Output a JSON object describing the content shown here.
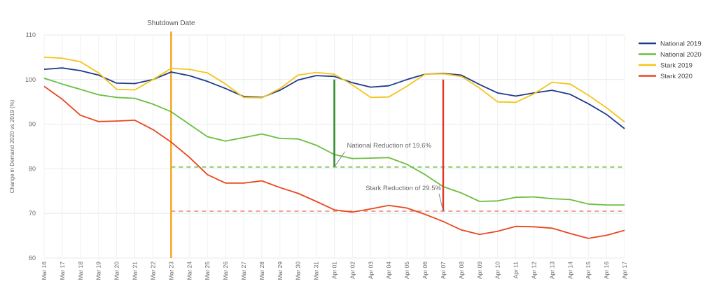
{
  "chart_data": {
    "type": "line",
    "title": "",
    "xlabel": "",
    "ylabel": "Change in Demand 2020 vs 2019 (%)",
    "ylim": [
      60,
      110
    ],
    "yticks": [
      60,
      70,
      80,
      90,
      100,
      110
    ],
    "grid": true,
    "legend_position": "right",
    "x": [
      "Mar 16",
      "Mar 17",
      "Mar 18",
      "Mar 19",
      "Mar 20",
      "Mar 21",
      "Mar 22",
      "Mar 23",
      "Mar 24",
      "Mar 25",
      "Mar 26",
      "Mar 27",
      "Mar 28",
      "Mar 29",
      "Mar 30",
      "Mar 31",
      "Apr 01",
      "Apr 02",
      "Apr 03",
      "Apr 04",
      "Apr 05",
      "Apr 06",
      "Apr 07",
      "Apr 08",
      "Apr 09",
      "Apr 10",
      "Apr 11",
      "Apr 12",
      "Apr 13",
      "Apr 14",
      "Apr 15",
      "Apr 16",
      "Apr 17"
    ],
    "series": [
      {
        "name": "National 2019",
        "color": "#1f3a8a",
        "values": [
          102.3,
          102.6,
          102.0,
          101.0,
          99.2,
          99.1,
          100.0,
          101.7,
          100.9,
          99.6,
          98.0,
          96.2,
          96.0,
          97.6,
          99.9,
          100.9,
          100.7,
          99.3,
          98.3,
          98.6,
          100.0,
          101.2,
          101.4,
          101.0,
          98.9,
          97.0,
          96.3,
          97.0,
          97.6,
          96.7,
          94.6,
          92.2,
          89.0
        ]
      },
      {
        "name": "National 2020",
        "color": "#6abf3f",
        "values": [
          100.3,
          99.0,
          97.8,
          96.6,
          96.0,
          95.8,
          94.5,
          92.8,
          90.0,
          87.2,
          86.2,
          87.0,
          87.8,
          86.8,
          86.7,
          85.3,
          83.2,
          82.3,
          82.4,
          82.5,
          81.0,
          78.7,
          76.0,
          74.6,
          72.7,
          72.8,
          73.6,
          73.7,
          73.3,
          73.1,
          72.1,
          71.9,
          71.9
        ]
      },
      {
        "name": "Stark 2019",
        "color": "#f5c518",
        "values": [
          105.0,
          104.8,
          104.0,
          101.5,
          97.8,
          97.7,
          100.0,
          102.5,
          102.3,
          101.5,
          99.0,
          96.0,
          95.9,
          98.0,
          101.0,
          101.6,
          101.2,
          98.8,
          96.0,
          96.1,
          98.5,
          101.2,
          101.3,
          100.7,
          98.1,
          95.0,
          94.9,
          96.8,
          99.4,
          99.0,
          96.5,
          93.7,
          90.5
        ]
      },
      {
        "name": "Stark 2020",
        "color": "#e8481c",
        "values": [
          98.5,
          95.6,
          92.0,
          90.6,
          90.7,
          90.9,
          88.8,
          86.0,
          82.6,
          78.7,
          76.8,
          76.8,
          77.3,
          75.8,
          74.5,
          72.7,
          70.8,
          70.3,
          71.0,
          71.8,
          71.2,
          69.8,
          68.2,
          66.3,
          65.3,
          66.0,
          67.1,
          67.0,
          66.7,
          65.5,
          64.4,
          65.1,
          66.2
        ]
      }
    ],
    "annotations": [
      {
        "text": "Shutdown Date",
        "x": "Mar 23",
        "color": "#f5a623"
      },
      {
        "text": "National Reduction of 19.6%",
        "x": "Apr 01",
        "from": 100,
        "to": 80.4,
        "color": "#2e8b2e"
      },
      {
        "text": "Stark Reduction of 29.5%",
        "x": "Apr 07",
        "from": 100,
        "to": 70.5,
        "color": "#e03a2a"
      }
    ],
    "reference_lines": [
      {
        "y": 80.4,
        "color": "#6abf3f",
        "from_x": "Mar 23"
      },
      {
        "y": 70.5,
        "color": "#f08070",
        "from_x": "Mar 23"
      }
    ]
  }
}
